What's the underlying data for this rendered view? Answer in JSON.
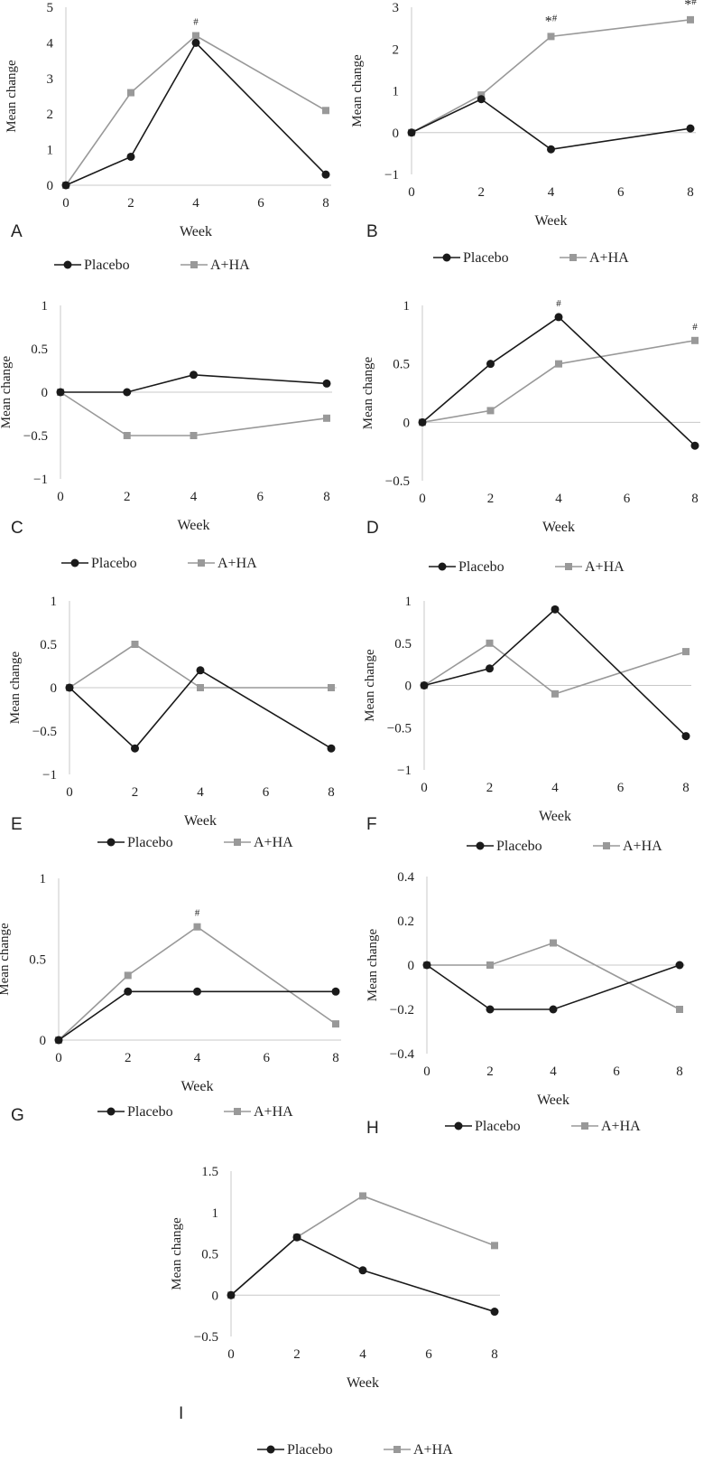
{
  "colors": {
    "placebo": "#1a1a1a",
    "ahaa": "#999999",
    "axis": "#c8c8c8",
    "text": "#222222"
  },
  "chart_data": [
    {
      "panel": "A",
      "type": "line",
      "xlabel": "Week",
      "ylabel": "Mean change",
      "x": [
        0,
        2,
        4,
        8
      ],
      "xticks": [
        "0",
        "2",
        "4",
        "6",
        "8"
      ],
      "ylim": [
        0,
        5
      ],
      "yticks": [
        "0",
        "1",
        "2",
        "3",
        "4",
        "5"
      ],
      "series": [
        {
          "name": "Placebo",
          "values": [
            0,
            0.8,
            4.0,
            0.3
          ]
        },
        {
          "name": "A+HA",
          "values": [
            0,
            2.6,
            4.2,
            2.1
          ]
        }
      ],
      "annotations": [
        {
          "x": 4,
          "series": 1,
          "text": "#"
        }
      ]
    },
    {
      "panel": "B",
      "type": "line",
      "xlabel": "Week",
      "ylabel": "Mean change",
      "x": [
        0,
        2,
        4,
        8
      ],
      "xticks": [
        "0",
        "2",
        "4",
        "6",
        "8"
      ],
      "ylim": [
        -1,
        3
      ],
      "yticks": [
        "-1",
        "0",
        "1",
        "2",
        "3"
      ],
      "series": [
        {
          "name": "Placebo",
          "values": [
            0,
            0.8,
            -0.4,
            0.1
          ]
        },
        {
          "name": "A+HA",
          "values": [
            0,
            0.9,
            2.3,
            2.7
          ]
        }
      ],
      "annotations": [
        {
          "x": 4,
          "series": 1,
          "text": "*#"
        },
        {
          "x": 8,
          "series": 1,
          "text": "*#"
        }
      ]
    },
    {
      "panel": "C",
      "type": "line",
      "xlabel": "Week",
      "ylabel": "Mean change",
      "x": [
        0,
        2,
        4,
        8
      ],
      "xticks": [
        "0",
        "2",
        "4",
        "6",
        "8"
      ],
      "ylim": [
        -1,
        1
      ],
      "yticks": [
        "-1",
        "-0.5",
        "0",
        "0.5",
        "1"
      ],
      "series": [
        {
          "name": "Placebo",
          "values": [
            0,
            0,
            0.2,
            0.1
          ]
        },
        {
          "name": "A+HA",
          "values": [
            0,
            -0.5,
            -0.5,
            -0.3
          ]
        }
      ],
      "annotations": []
    },
    {
      "panel": "D",
      "type": "line",
      "xlabel": "Week",
      "ylabel": "Mean change",
      "x": [
        0,
        2,
        4,
        8
      ],
      "xticks": [
        "0",
        "2",
        "4",
        "6",
        "8"
      ],
      "ylim": [
        -0.5,
        1
      ],
      "yticks": [
        "-0.5",
        "0",
        "0.5",
        "1"
      ],
      "series": [
        {
          "name": "Placebo",
          "values": [
            0,
            0.5,
            0.9,
            -0.2
          ]
        },
        {
          "name": "A+HA",
          "values": [
            0,
            0.1,
            0.5,
            0.7
          ]
        }
      ],
      "annotations": [
        {
          "x": 4,
          "series": 0,
          "text": "#"
        },
        {
          "x": 8,
          "series": 1,
          "text": "#"
        }
      ]
    },
    {
      "panel": "E",
      "type": "line",
      "xlabel": "Week",
      "ylabel": "Mean change",
      "x": [
        0,
        2,
        4,
        8
      ],
      "xticks": [
        "0",
        "2",
        "4",
        "6",
        "8"
      ],
      "ylim": [
        -1,
        1
      ],
      "yticks": [
        "-1",
        "-0.5",
        "0",
        "0.5",
        "1"
      ],
      "series": [
        {
          "name": "Placebo",
          "values": [
            0,
            -0.7,
            0.2,
            -0.7
          ]
        },
        {
          "name": "A+HA",
          "values": [
            0,
            0.5,
            0,
            0
          ]
        }
      ],
      "annotations": []
    },
    {
      "panel": "F",
      "type": "line",
      "xlabel": "Week",
      "ylabel": "Mean change",
      "x": [
        0,
        2,
        4,
        8
      ],
      "xticks": [
        "0",
        "2",
        "4",
        "6",
        "8"
      ],
      "ylim": [
        -1,
        1
      ],
      "yticks": [
        "-1",
        "-0.5",
        "0",
        "0.5",
        "1"
      ],
      "series": [
        {
          "name": "Placebo",
          "values": [
            0,
            0.2,
            0.9,
            -0.6
          ]
        },
        {
          "name": "A+HA",
          "values": [
            0,
            0.5,
            -0.1,
            0.4
          ]
        }
      ],
      "annotations": []
    },
    {
      "panel": "G",
      "type": "line",
      "xlabel": "Week",
      "ylabel": "Mean change",
      "x": [
        0,
        2,
        4,
        8
      ],
      "xticks": [
        "0",
        "2",
        "4",
        "6",
        "8"
      ],
      "ylim": [
        0,
        1
      ],
      "yticks": [
        "0",
        "0.5",
        "1"
      ],
      "series": [
        {
          "name": "Placebo",
          "values": [
            0,
            0.3,
            0.3,
            0.3
          ]
        },
        {
          "name": "A+HA",
          "values": [
            0,
            0.4,
            0.7,
            0.1
          ]
        }
      ],
      "annotations": [
        {
          "x": 4,
          "series": 1,
          "text": "#"
        }
      ]
    },
    {
      "panel": "H",
      "type": "line",
      "xlabel": "Week",
      "ylabel": "Mean change",
      "x": [
        0,
        2,
        4,
        8
      ],
      "xticks": [
        "0",
        "2",
        "4",
        "6",
        "8"
      ],
      "ylim": [
        -0.4,
        0.4
      ],
      "yticks": [
        "-0.4",
        "-0.2",
        "0",
        "0.2",
        "0.4"
      ],
      "series": [
        {
          "name": "Placebo",
          "values": [
            0,
            -0.2,
            -0.2,
            0
          ]
        },
        {
          "name": "A+HA",
          "values": [
            0,
            0,
            0.1,
            -0.2
          ]
        }
      ],
      "annotations": []
    },
    {
      "panel": "I",
      "type": "line",
      "xlabel": "Week",
      "ylabel": "Mean change",
      "x": [
        0,
        2,
        4,
        8
      ],
      "xticks": [
        "0",
        "2",
        "4",
        "6",
        "8"
      ],
      "ylim": [
        -0.5,
        1.5
      ],
      "yticks": [
        "-0.5",
        "0",
        "0.5",
        "1",
        "1.5"
      ],
      "series": [
        {
          "name": "Placebo",
          "values": [
            0,
            0.7,
            0.3,
            -0.2
          ]
        },
        {
          "name": "A+HA",
          "values": [
            0,
            0.7,
            1.2,
            0.6
          ]
        }
      ],
      "annotations": []
    }
  ]
}
